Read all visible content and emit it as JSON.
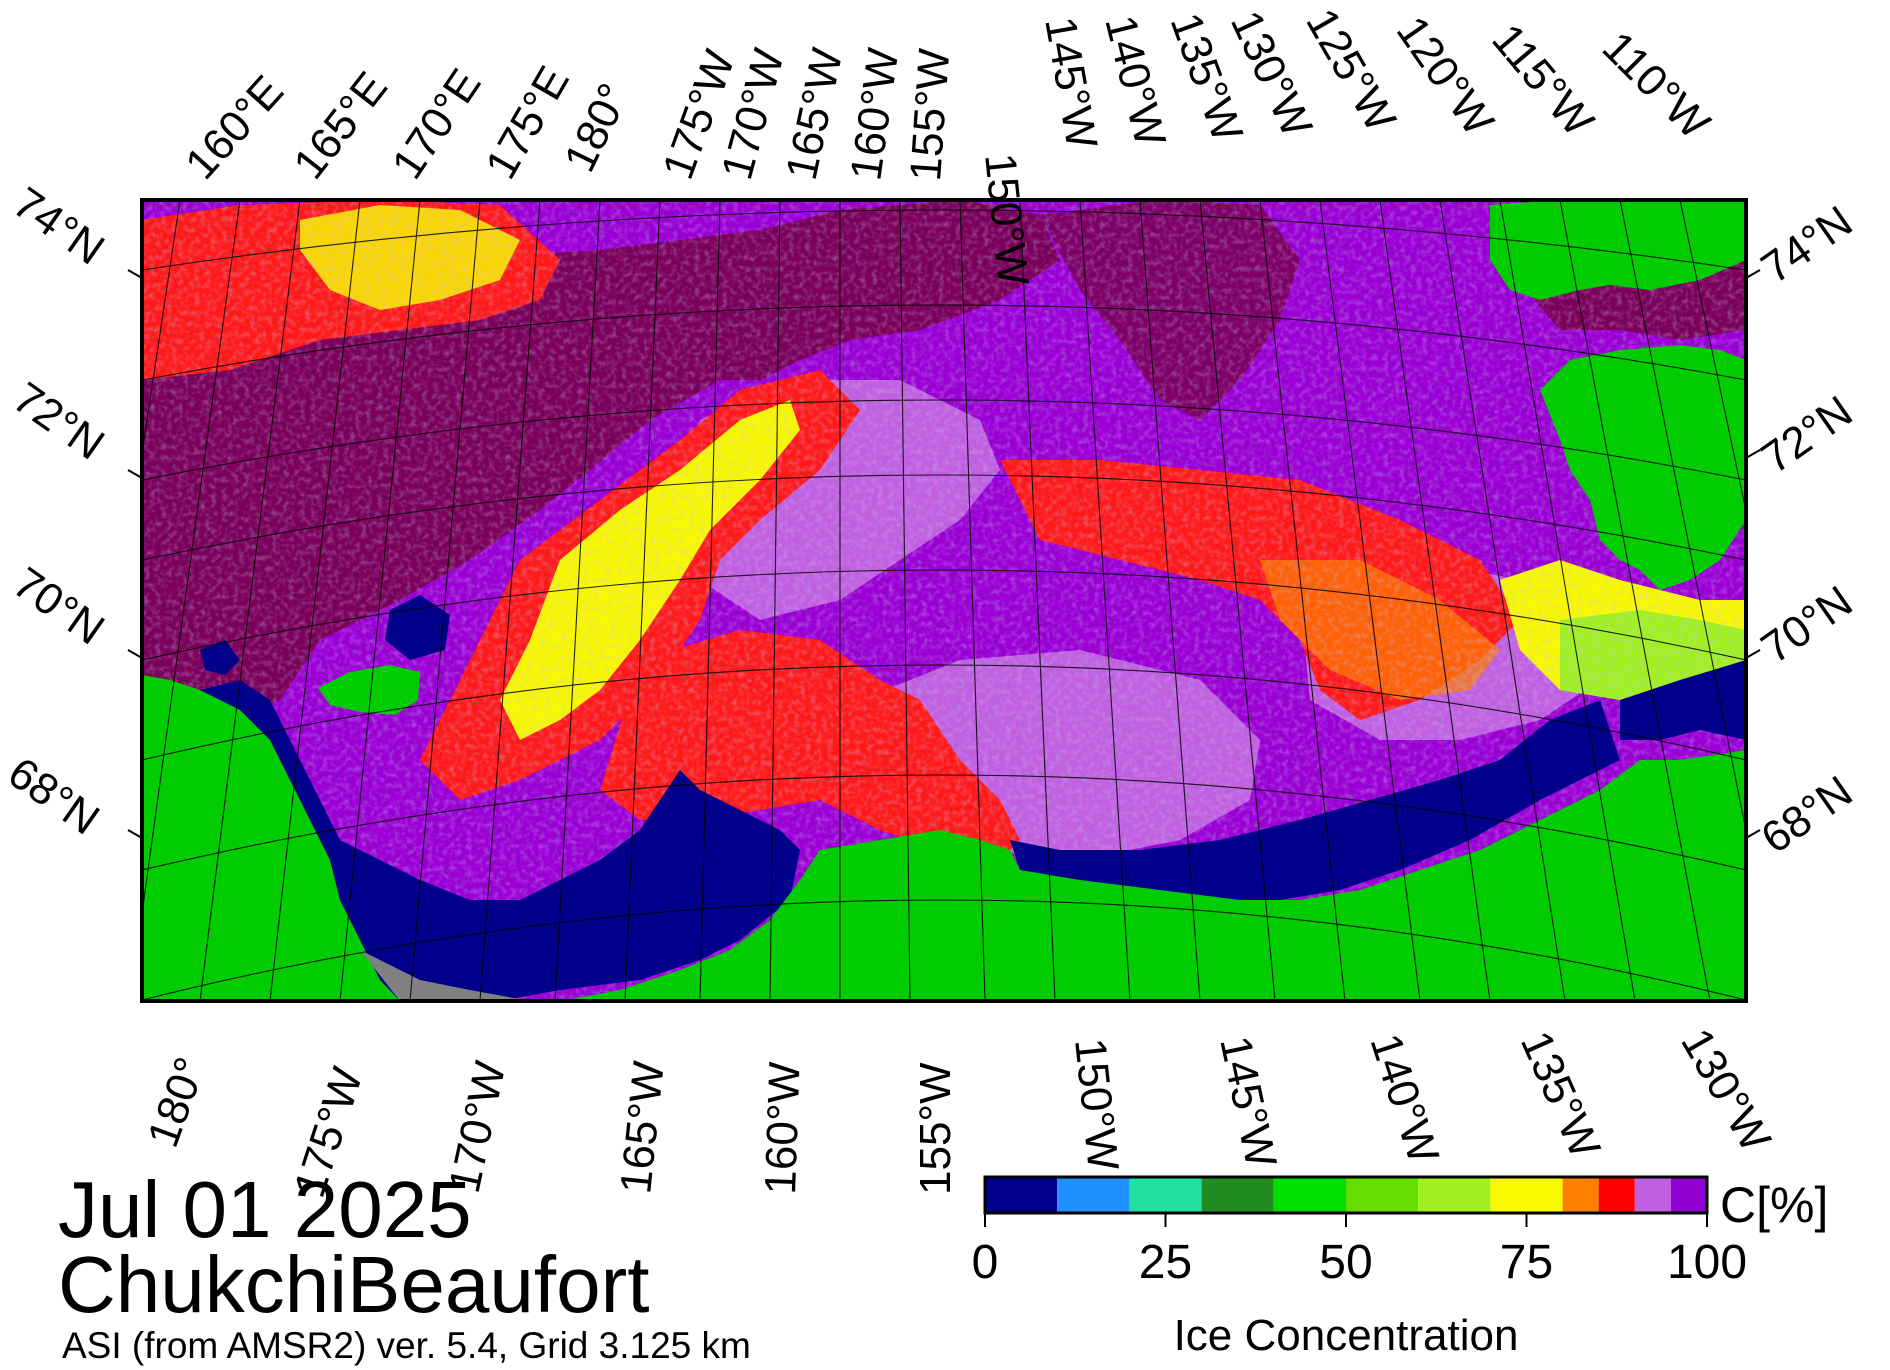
{
  "map": {
    "top_lon_labels": [
      "160°E",
      "165°E",
      "170°E",
      "175°E",
      "180°",
      "175°W",
      "170°W",
      "165°W",
      "160°W",
      "155°W",
      "150°W",
      "145°W",
      "140°W",
      "135°W",
      "130°W",
      "125°W",
      "120°W",
      "115°W",
      "110°W"
    ],
    "bottom_lon_labels": [
      "180°",
      "175°W",
      "170°W",
      "165°W",
      "160°W",
      "155°W",
      "150°W",
      "145°W",
      "140°W",
      "135°W",
      "130°W"
    ],
    "left_lat_labels": [
      "74°N",
      "72°N",
      "70°N",
      "68°N"
    ],
    "right_lat_labels": [
      "74°N",
      "72°N",
      "70°N",
      "68°N"
    ]
  },
  "colorbar": {
    "unit": "C[%]",
    "title": "Ice Concentration",
    "tick_labels": [
      "0",
      "25",
      "50",
      "75",
      "100"
    ],
    "bins": [
      {
        "from": 0,
        "to": 10,
        "color": "#00008b"
      },
      {
        "from": 10,
        "to": 20,
        "color": "#1e90ff"
      },
      {
        "from": 20,
        "to": 30,
        "color": "#20e0a0"
      },
      {
        "from": 30,
        "to": 40,
        "color": "#228b22"
      },
      {
        "from": 40,
        "to": 50,
        "color": "#00e000"
      },
      {
        "from": 50,
        "to": 60,
        "color": "#66dd00"
      },
      {
        "from": 60,
        "to": 70,
        "color": "#a0f020"
      },
      {
        "from": 70,
        "to": 80,
        "color": "#f8f800"
      },
      {
        "from": 80,
        "to": 85,
        "color": "#ff8000"
      },
      {
        "from": 85,
        "to": 90,
        "color": "#ff0000"
      },
      {
        "from": 90,
        "to": 95,
        "color": "#c060e0"
      },
      {
        "from": 95,
        "to": 100,
        "color": "#9000d0"
      }
    ]
  },
  "colors": {
    "land": "#00cc00",
    "open_water": "#00008b",
    "ice_high": "#9a00d4",
    "ice_very_high": "#7a005a",
    "missing": "#808080"
  },
  "titles": {
    "date": "Jul 01 2025",
    "region": "ChukchiBeaufort",
    "subtitle": "ASI (from AMSR2) ver. 5.4,  Grid 3.125 km"
  }
}
